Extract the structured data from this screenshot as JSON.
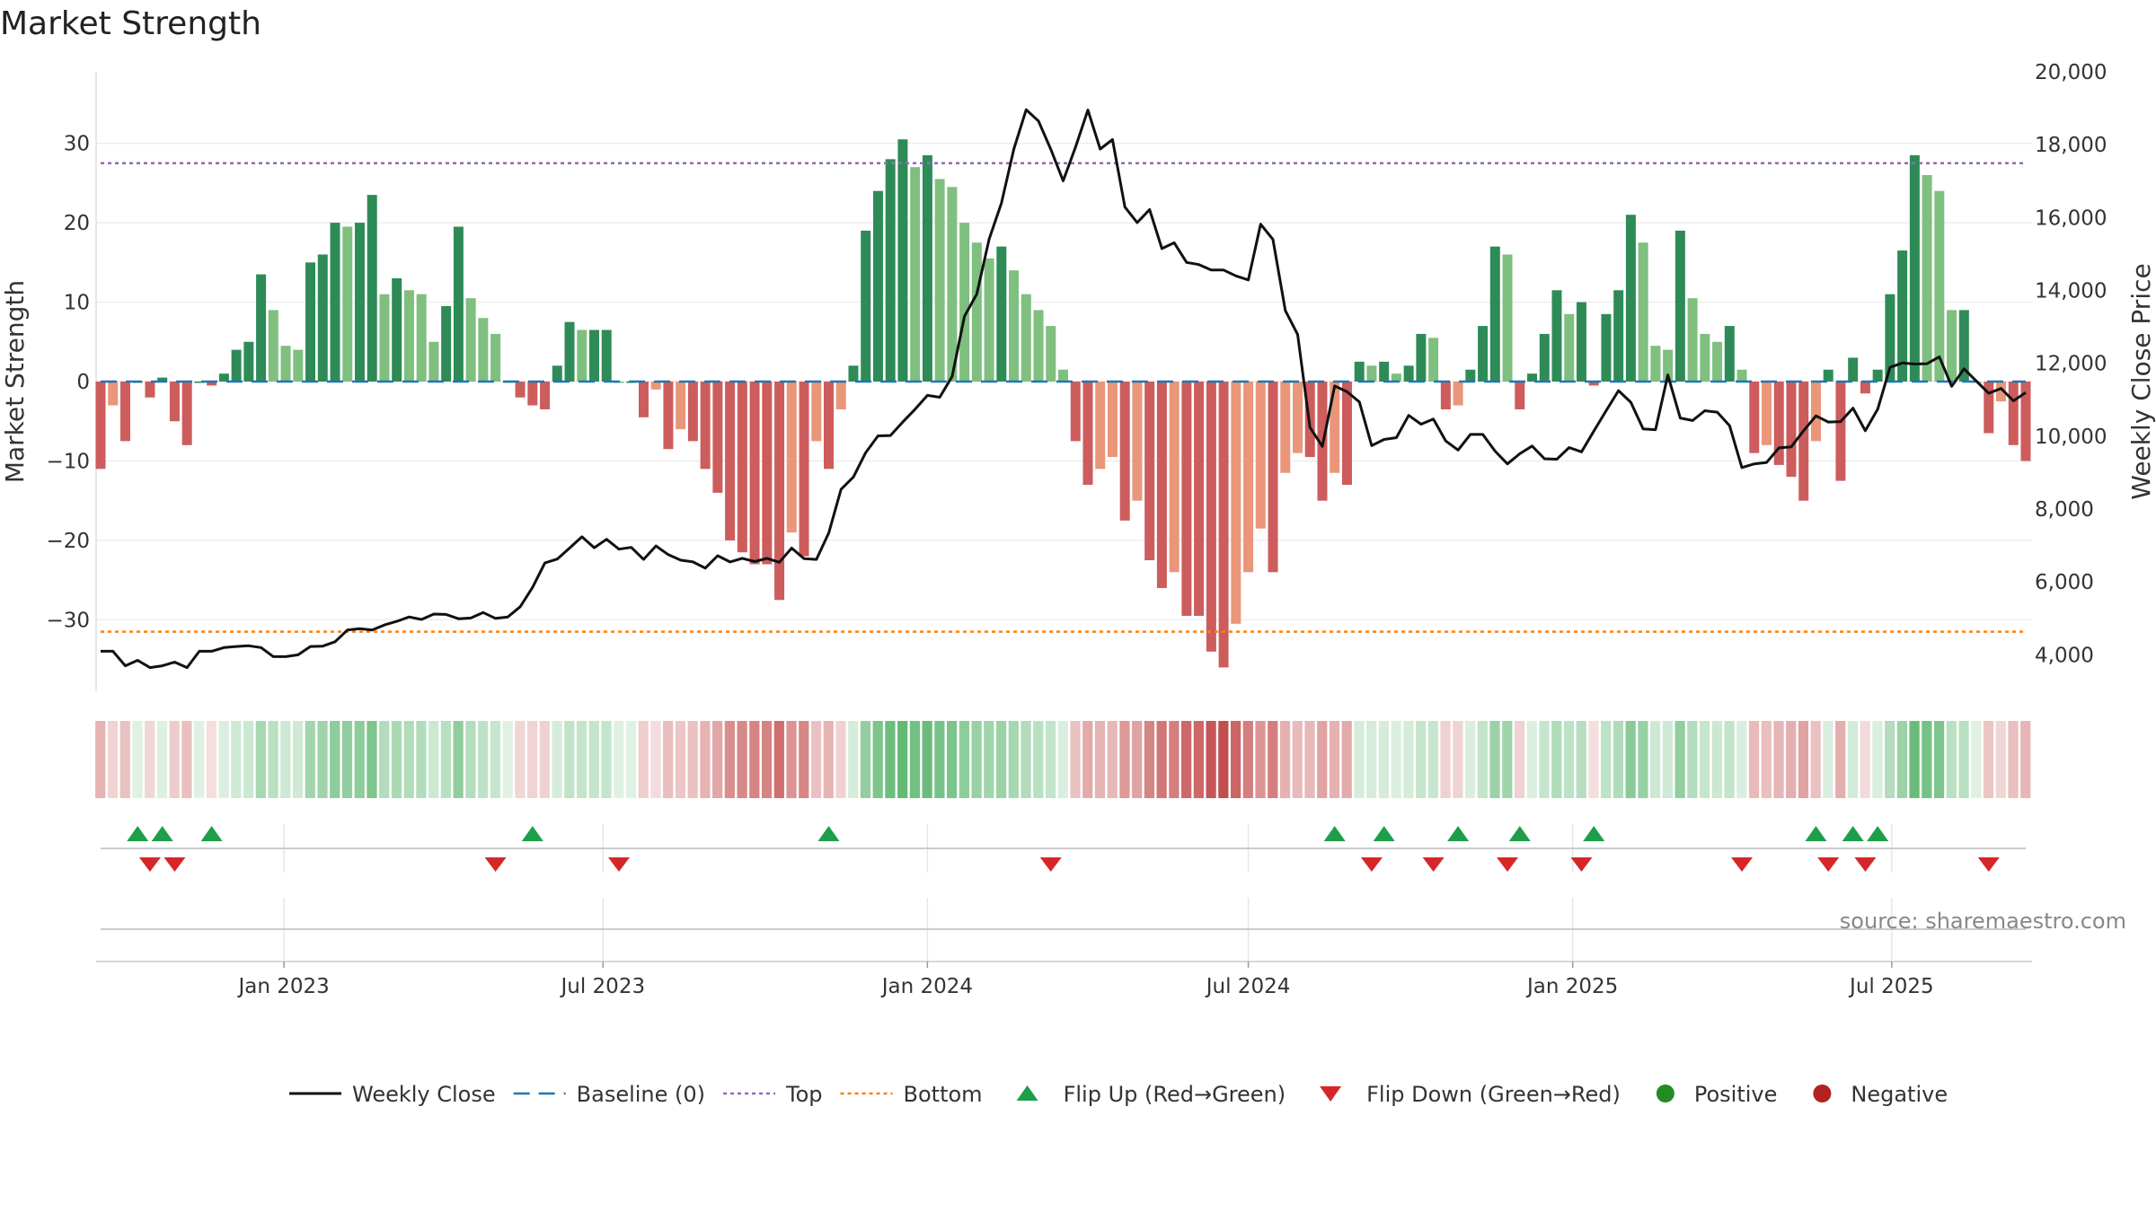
{
  "title": "Market Strength",
  "source_note": "source: sharemaestro.com",
  "colors": {
    "pos_dark": "#2e8b57",
    "pos_light": "#7fbf7f",
    "neg_dark": "#cd5c5c",
    "neg_light": "#e9967a",
    "close_line": "#111111",
    "baseline": "#1f77b4",
    "top_line": "#9467bd",
    "bottom_line": "#ff7f0e",
    "flip_up": "#1e9e4a",
    "flip_down": "#d62728",
    "positive_dot": "#228b22",
    "negative_dot": "#b22222"
  },
  "chart_data": {
    "type": "bar",
    "title": "Market Strength",
    "xlabel": "",
    "ylabel": "Market Strength",
    "y2label": "Weekly Close Price",
    "x_start": "2022-09-19",
    "x_end": "2025-09-15",
    "ylim": [
      -39,
      39
    ],
    "y2lim": [
      3000,
      20000
    ],
    "yticks": [
      -30,
      -20,
      -10,
      0,
      10,
      20,
      30
    ],
    "y2ticks": [
      4000,
      6000,
      8000,
      10000,
      12000,
      14000,
      16000,
      18000,
      20000
    ],
    "y2tick_labels": [
      "4,000",
      "6,000",
      "8,000",
      "10,000",
      "12,000",
      "14,000",
      "16,000",
      "18,000",
      "20,000"
    ],
    "xticks": [
      {
        "date": "2023-01-01",
        "label": "Jan 2023"
      },
      {
        "date": "2023-07-01",
        "label": "Jul 2023"
      },
      {
        "date": "2024-01-01",
        "label": "Jan 2024"
      },
      {
        "date": "2024-07-01",
        "label": "Jul 2024"
      },
      {
        "date": "2025-01-01",
        "label": "Jan 2025"
      },
      {
        "date": "2025-07-01",
        "label": "Jul 2025"
      }
    ],
    "top_level": 27.5,
    "bottom_level": -31.5,
    "baseline": 0,
    "legend": [
      "Weekly Close",
      "Baseline (0)",
      "Top",
      "Bottom",
      "Flip Up (Red→Green)",
      "Flip Down (Green→Red)",
      "Positive",
      "Negative"
    ],
    "strength": [
      -11,
      -3,
      -7.5,
      0,
      -2,
      0.5,
      -5,
      -8,
      0,
      -0.5,
      1,
      4,
      5,
      13.5,
      9,
      4.5,
      4,
      15,
      16,
      20,
      19.5,
      20,
      23.5,
      11,
      13,
      11.5,
      11,
      5,
      9.5,
      19.5,
      10.5,
      8,
      6,
      0,
      -2,
      -3,
      -3.5,
      2,
      7.5,
      6.5,
      6.5,
      6.5,
      0,
      0,
      -4.5,
      -1,
      -8.5,
      -6,
      -7.5,
      -11,
      -14,
      -20,
      -21.5,
      -23,
      -23,
      -27.5,
      -19,
      -22,
      -7.5,
      -11,
      -3.5,
      2,
      19,
      24,
      28,
      30.5,
      27,
      28.5,
      25.5,
      24.5,
      20,
      17.5,
      15.5,
      17,
      14,
      11,
      9,
      7,
      1.5,
      -7.5,
      -13,
      -11,
      -9.5,
      -17.5,
      -15,
      -22.5,
      -26,
      -24,
      -29.5,
      -29.5,
      -34,
      -36,
      -30.5,
      -24,
      -18.5,
      -24,
      -11.5,
      -9,
      -9.5,
      -15,
      -11.5,
      -13,
      2.5,
      2,
      2.5,
      1,
      2,
      6,
      5.5,
      -3.5,
      -3,
      1.5,
      7,
      17,
      16,
      -3.5,
      1,
      6,
      11.5,
      8.5,
      10,
      -0.5,
      8.5,
      11.5,
      21,
      17.5,
      4.5,
      4,
      19,
      10.5,
      6,
      5,
      7,
      1.5,
      -9,
      -8,
      -10.5,
      -12,
      -15,
      -7.5,
      1.5,
      -12.5,
      3,
      -1.5,
      1.5,
      11,
      16.5,
      28.5,
      26,
      24,
      9,
      9,
      0,
      -6.5,
      -2.5,
      -8,
      -10
    ],
    "weekly_close": [
      4100,
      4100,
      3700,
      3850,
      3650,
      3700,
      3800,
      3650,
      4100,
      4100,
      4200,
      4230,
      4250,
      4200,
      3950,
      3950,
      4000,
      4230,
      4240,
      4360,
      4680,
      4720,
      4680,
      4820,
      4920,
      5040,
      4970,
      5120,
      5110,
      4990,
      5010,
      5160,
      5000,
      5040,
      5320,
      5850,
      6520,
      6630,
      6930,
      7240,
      6940,
      7170,
      6900,
      6950,
      6620,
      6990,
      6750,
      6600,
      6550,
      6380,
      6720,
      6550,
      6650,
      6560,
      6650,
      6540,
      6930,
      6640,
      6620,
      7340,
      8540,
      8880,
      9550,
      10010,
      10020,
      10390,
      10740,
      11120,
      11070,
      11640,
      13290,
      13900,
      15410,
      16400,
      17880,
      18960,
      18650,
      17870,
      17010,
      17930,
      18950,
      17880,
      18140,
      16290,
      15860,
      16220,
      15150,
      15310,
      14770,
      14710,
      14560,
      14560,
      14400,
      14290,
      15820,
      15400,
      13450,
      12790,
      10240,
      9720,
      11380,
      11220,
      10940,
      9740,
      9910,
      9960,
      10570,
      10330,
      10470,
      9870,
      9620,
      10050,
      10050,
      9590,
      9240,
      9520,
      9730,
      9380,
      9370,
      9690,
      9570,
      10140,
      10700,
      11250,
      10930,
      10200,
      10180,
      11680,
      10500,
      10430,
      10700,
      10660,
      10290,
      9140,
      9240,
      9280,
      9680,
      9710,
      10150,
      10560,
      10390,
      10400,
      10770,
      10150,
      10740,
      11890,
      12010,
      11980,
      11990,
      12180,
      11370,
      11850,
      11510,
      11180,
      11310,
      10970,
      11200
    ],
    "flip_up_indices": [
      3,
      5,
      9,
      35,
      59,
      100,
      104,
      110,
      115,
      121,
      139,
      142,
      144
    ],
    "flip_down_indices": [
      4,
      6,
      32,
      42,
      77,
      103,
      108,
      114,
      120,
      133,
      140,
      143,
      153
    ]
  }
}
